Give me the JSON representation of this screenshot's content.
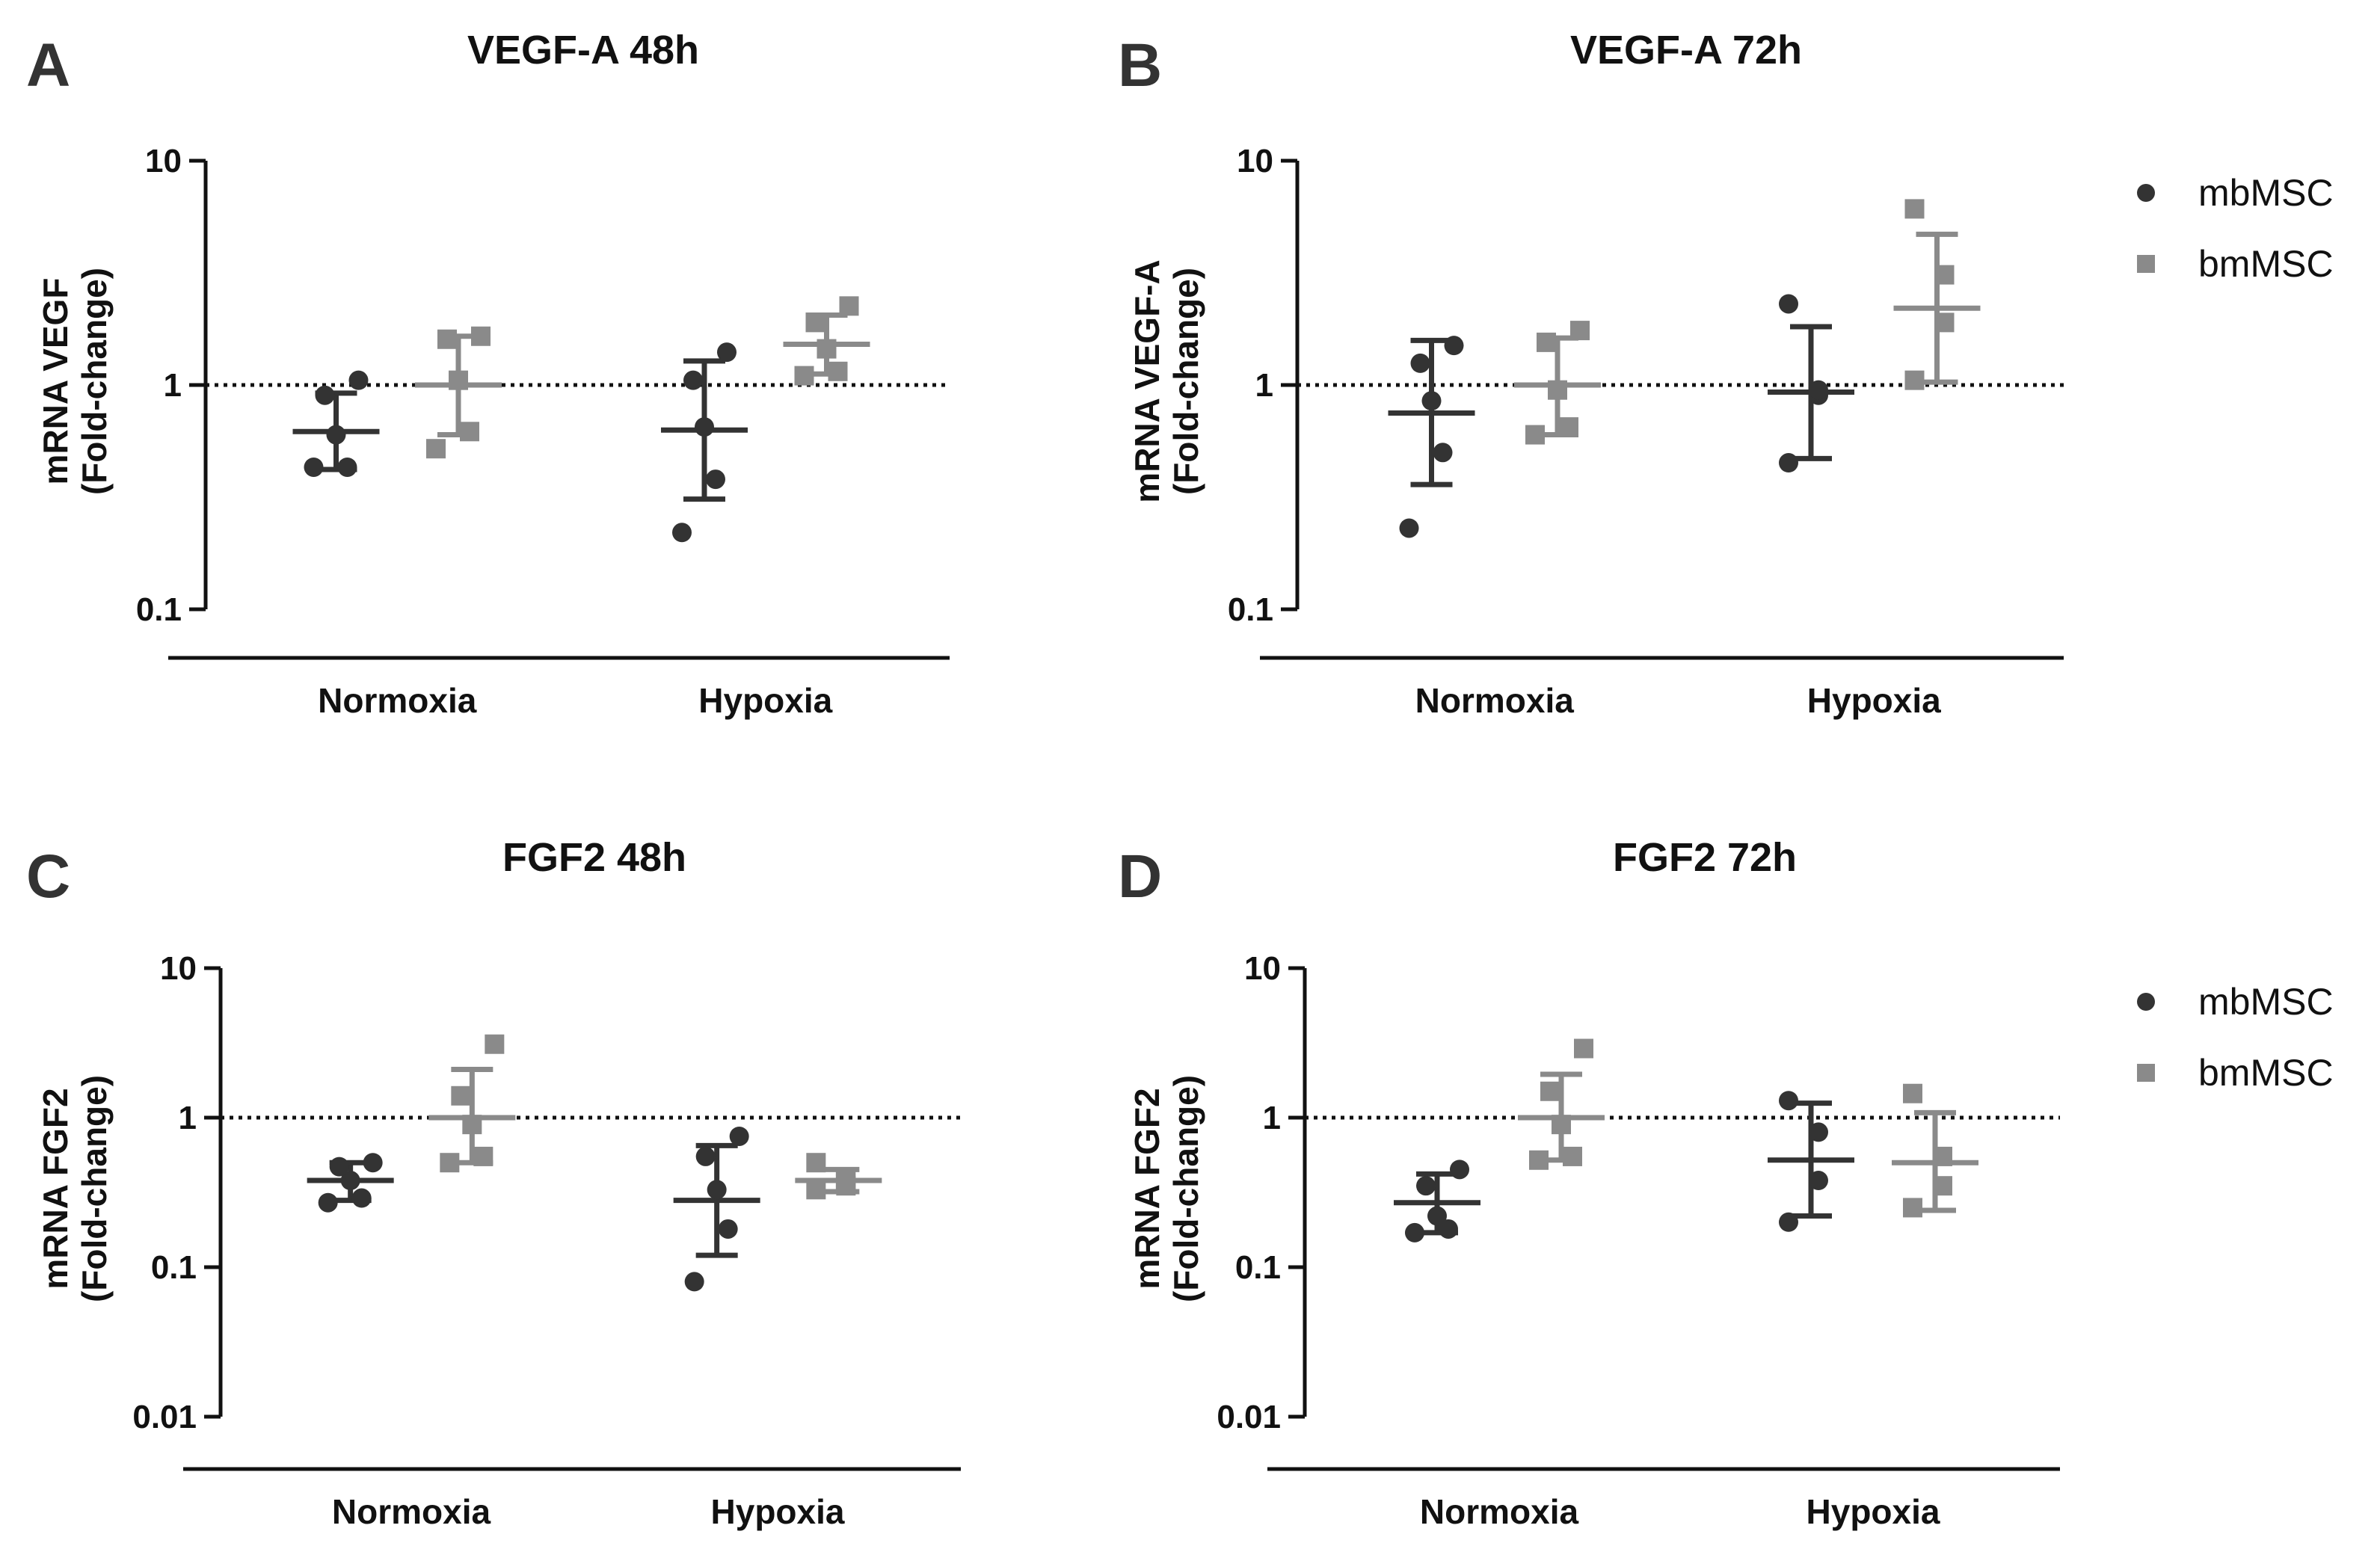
{
  "colors": {
    "mbMSC": "#333333",
    "bmMSC": "#8a8a8a",
    "axis": "#111111"
  },
  "chart_data": [
    {
      "panel": "A",
      "type": "scatter",
      "title": "VEGF-A 48h",
      "ylabel": [
        "mRNA VEGF",
        "(Fold-change)"
      ],
      "yscale": "log",
      "ylim": [
        0.1,
        10
      ],
      "yticks": [
        0.1,
        1,
        10
      ],
      "ytick_labels": [
        "0.1",
        "1",
        "10"
      ],
      "reference_line": 1,
      "categories": [
        "Normoxia",
        "Hypoxia"
      ],
      "legend": null,
      "series": [
        {
          "name": "mbMSC",
          "marker": "circle",
          "groups": [
            {
              "category": "Normoxia",
              "points": [
                0.43,
                0.43,
                0.6,
                0.9,
                1.05
              ],
              "mean": 0.62,
              "sd_low": 0.42,
              "sd_high": 0.92
            },
            {
              "category": "Hypoxia",
              "points": [
                0.22,
                0.38,
                0.65,
                1.05,
                1.4
              ],
              "mean": 0.63,
              "sd_low": 0.31,
              "sd_high": 1.28
            }
          ]
        },
        {
          "name": "bmMSC",
          "marker": "square",
          "groups": [
            {
              "category": "Normoxia",
              "points": [
                0.52,
                0.62,
                1.05,
                1.6,
                1.65
              ],
              "mean": 1.0,
              "sd_low": 0.6,
              "sd_high": 1.65
            },
            {
              "category": "Hypoxia",
              "points": [
                1.1,
                1.15,
                1.45,
                1.9,
                2.25
              ],
              "mean": 1.52,
              "sd_low": 1.12,
              "sd_high": 2.05
            }
          ]
        }
      ]
    },
    {
      "panel": "B",
      "type": "scatter",
      "title": "VEGF-A 72h",
      "ylabel": [
        "mRNA VEGF-A",
        "(Fold-change)"
      ],
      "yscale": "log",
      "ylim": [
        0.1,
        10
      ],
      "yticks": [
        0.1,
        1,
        10
      ],
      "ytick_labels": [
        "0.1",
        "1",
        "10"
      ],
      "reference_line": 1,
      "categories": [
        "Normoxia",
        "Hypoxia"
      ],
      "legend": [
        "mbMSC",
        "bmMSC"
      ],
      "series": [
        {
          "name": "mbMSC",
          "marker": "circle",
          "groups": [
            {
              "category": "Normoxia",
              "points": [
                0.23,
                0.5,
                0.85,
                1.25,
                1.5
              ],
              "mean": 0.75,
              "sd_low": 0.36,
              "sd_high": 1.58
            },
            {
              "category": "Hypoxia",
              "points": [
                0.45,
                0.9,
                0.95,
                2.3
              ],
              "mean": 0.93,
              "sd_low": 0.47,
              "sd_high": 1.82
            }
          ]
        },
        {
          "name": "bmMSC",
          "marker": "square",
          "groups": [
            {
              "category": "Normoxia",
              "points": [
                0.6,
                0.65,
                0.95,
                1.55,
                1.75
              ],
              "mean": 1.0,
              "sd_low": 0.6,
              "sd_high": 1.62
            },
            {
              "category": "Hypoxia",
              "points": [
                1.05,
                1.9,
                3.1,
                6.1
              ],
              "mean": 2.2,
              "sd_low": 1.03,
              "sd_high": 4.7
            }
          ]
        }
      ]
    },
    {
      "panel": "C",
      "type": "scatter",
      "title": "FGF2 48h",
      "ylabel": [
        "mRNA FGF2",
        "(Fold-change)"
      ],
      "yscale": "log",
      "ylim": [
        0.01,
        10
      ],
      "yticks": [
        0.01,
        0.1,
        1,
        10
      ],
      "ytick_labels": [
        "0.01",
        "0.1",
        "1",
        "10"
      ],
      "reference_line": 1,
      "categories": [
        "Normoxia",
        "Hypoxia"
      ],
      "legend": null,
      "series": [
        {
          "name": "mbMSC",
          "marker": "circle",
          "groups": [
            {
              "category": "Normoxia",
              "points": [
                0.27,
                0.29,
                0.38,
                0.47,
                0.5
              ],
              "mean": 0.38,
              "sd_low": 0.28,
              "sd_high": 0.5
            },
            {
              "category": "Hypoxia",
              "points": [
                0.08,
                0.18,
                0.33,
                0.55,
                0.75
              ],
              "mean": 0.28,
              "sd_low": 0.12,
              "sd_high": 0.65
            }
          ]
        },
        {
          "name": "bmMSC",
          "marker": "square",
          "groups": [
            {
              "category": "Normoxia",
              "points": [
                0.5,
                0.55,
                0.9,
                1.4,
                3.1
              ],
              "mean": 1.0,
              "sd_low": 0.5,
              "sd_high": 2.1
            },
            {
              "category": "Hypoxia",
              "points": [
                0.33,
                0.35,
                0.38,
                0.5
              ],
              "mean": 0.38,
              "sd_low": 0.32,
              "sd_high": 0.45
            }
          ]
        }
      ]
    },
    {
      "panel": "D",
      "type": "scatter",
      "title": "FGF2 72h",
      "ylabel": [
        "mRNA FGF2",
        "(Fold-change)"
      ],
      "yscale": "log",
      "ylim": [
        0.01,
        10
      ],
      "yticks": [
        0.01,
        0.1,
        1,
        10
      ],
      "ytick_labels": [
        "0.01",
        "0.1",
        "1",
        "10"
      ],
      "reference_line": 1,
      "categories": [
        "Normoxia",
        "Hypoxia"
      ],
      "legend": [
        "mbMSC",
        "bmMSC"
      ],
      "series": [
        {
          "name": "mbMSC",
          "marker": "circle",
          "groups": [
            {
              "category": "Normoxia",
              "points": [
                0.17,
                0.18,
                0.22,
                0.35,
                0.45
              ],
              "mean": 0.27,
              "sd_low": 0.17,
              "sd_high": 0.42
            },
            {
              "category": "Hypoxia",
              "points": [
                0.2,
                0.38,
                0.8,
                1.3
              ],
              "mean": 0.52,
              "sd_low": 0.22,
              "sd_high": 1.25
            }
          ]
        },
        {
          "name": "bmMSC",
          "marker": "square",
          "groups": [
            {
              "category": "Normoxia",
              "points": [
                0.52,
                0.55,
                0.9,
                1.5,
                2.9
              ],
              "mean": 1.0,
              "sd_low": 0.52,
              "sd_high": 1.95
            },
            {
              "category": "Hypoxia",
              "points": [
                0.25,
                0.35,
                0.55,
                1.45
              ],
              "mean": 0.5,
              "sd_low": 0.24,
              "sd_high": 1.08
            }
          ]
        }
      ]
    }
  ]
}
